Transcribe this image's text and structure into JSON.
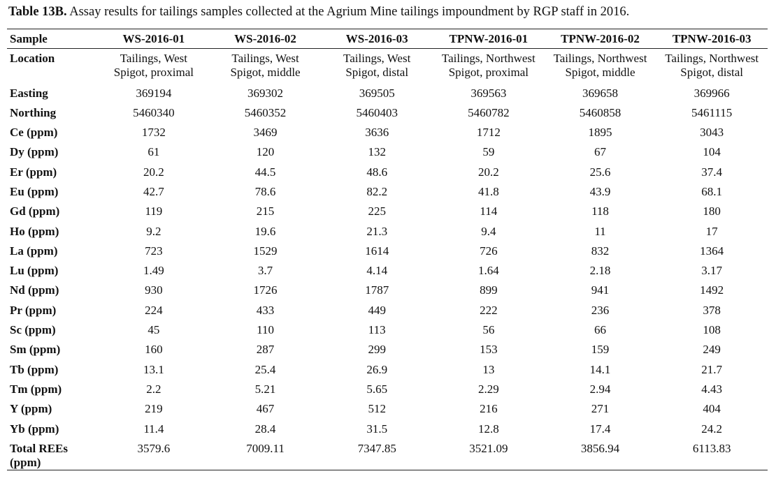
{
  "caption": {
    "label": "Table 13B.",
    "text": " Assay results for tailings samples collected at the Agrium Mine tailings impoundment by RGP staff in 2016."
  },
  "table": {
    "header_label": "Sample",
    "samples": [
      "WS-2016-01",
      "WS-2016-02",
      "WS-2016-03",
      "TPNW-2016-01",
      "TPNW-2016-02",
      "TPNW-2016-03"
    ],
    "location_label": "Location",
    "locations": [
      [
        "Tailings, West",
        "Spigot, proximal"
      ],
      [
        "Tailings, West",
        "Spigot, middle"
      ],
      [
        "Tailings, West",
        "Spigot, distal"
      ],
      [
        "Tailings, Northwest",
        "Spigot, proximal"
      ],
      [
        "Tailings, Northwest",
        "Spigot, middle"
      ],
      [
        "Tailings, Northwest",
        "Spigot, distal"
      ]
    ],
    "rows": [
      {
        "label": "Easting",
        "values": [
          "369194",
          "369302",
          "369505",
          "369563",
          "369658",
          "369966"
        ]
      },
      {
        "label": "Northing",
        "values": [
          "5460340",
          "5460352",
          "5460403",
          "5460782",
          "5460858",
          "5461115"
        ]
      },
      {
        "label": "Ce (ppm)",
        "values": [
          "1732",
          "3469",
          "3636",
          "1712",
          "1895",
          "3043"
        ]
      },
      {
        "label": "Dy (ppm)",
        "values": [
          "61",
          "120",
          "132",
          "59",
          "67",
          "104"
        ]
      },
      {
        "label": "Er (ppm)",
        "values": [
          "20.2",
          "44.5",
          "48.6",
          "20.2",
          "25.6",
          "37.4"
        ]
      },
      {
        "label": "Eu (ppm)",
        "values": [
          "42.7",
          "78.6",
          "82.2",
          "41.8",
          "43.9",
          "68.1"
        ]
      },
      {
        "label": "Gd (ppm)",
        "values": [
          "119",
          "215",
          "225",
          "114",
          "118",
          "180"
        ]
      },
      {
        "label": "Ho (ppm)",
        "values": [
          "9.2",
          "19.6",
          "21.3",
          "9.4",
          "11",
          "17"
        ]
      },
      {
        "label": "La (ppm)",
        "values": [
          "723",
          "1529",
          "1614",
          "726",
          "832",
          "1364"
        ]
      },
      {
        "label": "Lu (ppm)",
        "values": [
          "1.49",
          "3.7",
          "4.14",
          "1.64",
          "2.18",
          "3.17"
        ]
      },
      {
        "label": "Nd (ppm)",
        "values": [
          "930",
          "1726",
          "1787",
          "899",
          "941",
          "1492"
        ]
      },
      {
        "label": "Pr (ppm)",
        "values": [
          "224",
          "433",
          "449",
          "222",
          "236",
          "378"
        ]
      },
      {
        "label": "Sc (ppm)",
        "values": [
          "45",
          "110",
          "113",
          "56",
          "66",
          "108"
        ]
      },
      {
        "label": "Sm (ppm)",
        "values": [
          "160",
          "287",
          "299",
          "153",
          "159",
          "249"
        ]
      },
      {
        "label": "Tb (ppm)",
        "values": [
          "13.1",
          "25.4",
          "26.9",
          "13",
          "14.1",
          "21.7"
        ]
      },
      {
        "label": "Tm (ppm)",
        "values": [
          "2.2",
          "5.21",
          "5.65",
          "2.29",
          "2.94",
          "4.43"
        ]
      },
      {
        "label": "Y (ppm)",
        "values": [
          "219",
          "467",
          "512",
          "216",
          "271",
          "404"
        ]
      },
      {
        "label": "Yb (ppm)",
        "values": [
          "11.4",
          "28.4",
          "31.5",
          "12.8",
          "17.4",
          "24.2"
        ]
      }
    ],
    "total": {
      "label_line1": "Total REEs",
      "label_line2": "(ppm)",
      "values": [
        "3579.6",
        "7009.11",
        "7347.85",
        "3521.09",
        "3856.94",
        "6113.83"
      ]
    }
  }
}
